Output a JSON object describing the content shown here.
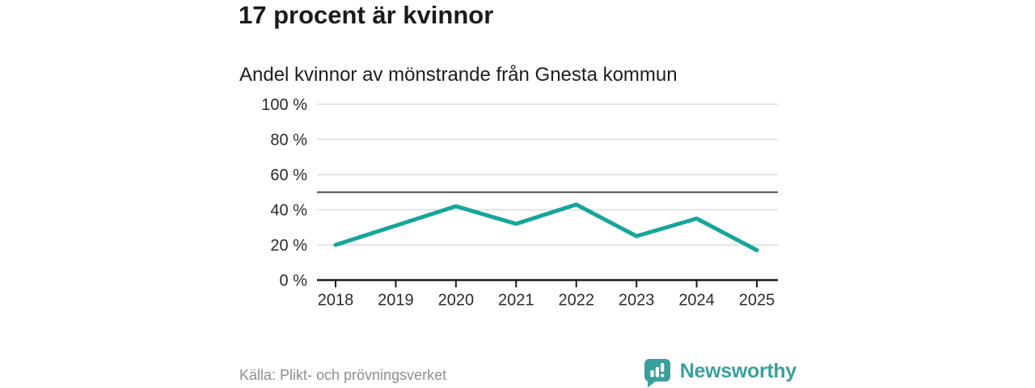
{
  "header": {
    "title": "17 procent är kvinnor"
  },
  "chart": {
    "subtitle": "Andel kvinnor av mönstrande från Gnesta kommun"
  },
  "chart_data": {
    "type": "line",
    "title": "17 procent är kvinnor",
    "subtitle": "Andel kvinnor av mönstrande från Gnesta kommun",
    "categories": [
      "2018",
      "2019",
      "2020",
      "2021",
      "2022",
      "2023",
      "2024",
      "2025"
    ],
    "series": [
      {
        "name": "Andel kvinnor av mönstrande",
        "values": [
          20,
          31,
          42,
          32,
          43,
          25,
          35,
          17
        ]
      }
    ],
    "unit": "%",
    "xlabel": "",
    "ylabel": "",
    "ylim": [
      0,
      100
    ],
    "yticks": [
      0,
      20,
      40,
      60,
      80,
      100
    ],
    "ytick_labels": [
      "0 %",
      "20 %",
      "40 %",
      "60 %",
      "80 %",
      "100 %"
    ],
    "reference_line": 50,
    "grid": true,
    "legend": "none",
    "line_color": "#16a59b",
    "grid_color": "#dcdcdc",
    "reference_line_color": "#4d4d4d",
    "axis_color": "#1a1a1a"
  },
  "footer": {
    "source": "Källa: Plikt- och prövningsverket",
    "brand": "Newsworthy",
    "brand_color": "#3aa09d",
    "logo_icon": "bar-chart-speech-bubble-icon"
  }
}
